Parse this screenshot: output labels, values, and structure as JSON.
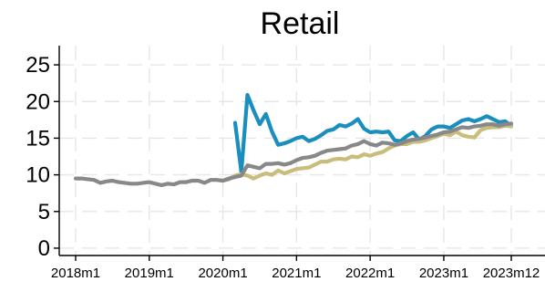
{
  "chart_data": {
    "type": "line",
    "title": "Retail",
    "xlabel": "",
    "ylabel": "",
    "x_ticks": [
      "2018m1",
      "2019m1",
      "2020m1",
      "2021m1",
      "2022m1",
      "2023m1",
      "2023m12"
    ],
    "xlim": [
      "2018m1",
      "2023m12"
    ],
    "y_ticks": [
      0,
      5,
      10,
      15,
      20,
      25
    ],
    "ylim": [
      -1,
      27
    ],
    "grid": true,
    "legend": "none",
    "series": [
      {
        "color": "#1a8fbf",
        "x": [
          "2020m3",
          "2020m4",
          "2020m5",
          "2020m6",
          "2020m7",
          "2020m8",
          "2020m9",
          "2020m10",
          "2020m11",
          "2020m12",
          "2021m1",
          "2021m2",
          "2021m3",
          "2021m4",
          "2021m5",
          "2021m6",
          "2021m7",
          "2021m8",
          "2021m9",
          "2021m10",
          "2021m11",
          "2021m12",
          "2022m1",
          "2022m2",
          "2022m3",
          "2022m4",
          "2022m5",
          "2022m6",
          "2022m7",
          "2022m8",
          "2022m9",
          "2022m10",
          "2022m11",
          "2022m12",
          "2023m1",
          "2023m2",
          "2023m3",
          "2023m4",
          "2023m5",
          "2023m6",
          "2023m7",
          "2023m8",
          "2023m9",
          "2023m10",
          "2023m11",
          "2023m12"
        ],
        "y": [
          17.1,
          10.4,
          20.9,
          18.8,
          16.9,
          18.3,
          15.9,
          14.1,
          14.3,
          14.6,
          15.0,
          15.2,
          14.6,
          14.9,
          15.4,
          16.0,
          16.2,
          16.8,
          16.6,
          17.0,
          17.6,
          16.3,
          15.8,
          15.9,
          15.8,
          15.9,
          14.7,
          14.6,
          15.3,
          15.8,
          14.8,
          15.3,
          16.2,
          16.6,
          16.6,
          16.4,
          16.9,
          17.4,
          17.6,
          17.3,
          17.6,
          18.0,
          17.6,
          17.2,
          17.3,
          16.7
        ]
      },
      {
        "color": "#c9bd7c",
        "x": [
          "2020m1",
          "2020m2",
          "2020m3",
          "2020m4",
          "2020m5",
          "2020m6",
          "2020m7",
          "2020m8",
          "2020m9",
          "2020m10",
          "2020m11",
          "2020m12",
          "2021m1",
          "2021m2",
          "2021m3",
          "2021m4",
          "2021m5",
          "2021m6",
          "2021m7",
          "2021m8",
          "2021m9",
          "2021m10",
          "2021m11",
          "2021m12",
          "2022m1",
          "2022m2",
          "2022m3",
          "2022m4",
          "2022m5",
          "2022m6",
          "2022m7",
          "2022m8",
          "2022m9",
          "2022m10",
          "2022m11",
          "2022m12",
          "2023m1",
          "2023m2",
          "2023m3",
          "2023m4",
          "2023m5",
          "2023m6",
          "2023m7",
          "2023m8",
          "2023m9",
          "2023m10",
          "2023m11",
          "2023m12"
        ],
        "y": [
          9.2,
          9.4,
          9.9,
          10.1,
          9.9,
          9.5,
          9.9,
          10.2,
          10.0,
          10.6,
          10.2,
          10.5,
          10.8,
          10.9,
          11.0,
          11.4,
          11.8,
          11.8,
          12.1,
          12.2,
          12.1,
          12.5,
          12.4,
          12.8,
          12.6,
          12.9,
          13.1,
          13.6,
          14.0,
          14.2,
          14.2,
          14.5,
          14.5,
          14.7,
          15.0,
          15.3,
          15.6,
          15.4,
          15.9,
          15.4,
          15.2,
          15.1,
          16.1,
          16.4,
          16.5,
          16.5,
          16.7,
          16.6
        ]
      },
      {
        "color": "#888888",
        "x": [
          "2018m1",
          "2018m2",
          "2018m3",
          "2018m4",
          "2018m5",
          "2018m6",
          "2018m7",
          "2018m8",
          "2018m9",
          "2018m10",
          "2018m11",
          "2018m12",
          "2019m1",
          "2019m2",
          "2019m3",
          "2019m4",
          "2019m5",
          "2019m6",
          "2019m7",
          "2019m8",
          "2019m9",
          "2019m10",
          "2019m11",
          "2019m12",
          "2020m1",
          "2020m2",
          "2020m3",
          "2020m4",
          "2020m5",
          "2020m6",
          "2020m7",
          "2020m8",
          "2020m9",
          "2020m10",
          "2020m11",
          "2020m12",
          "2021m1",
          "2021m2",
          "2021m3",
          "2021m4",
          "2021m5",
          "2021m6",
          "2021m7",
          "2021m8",
          "2021m9",
          "2021m10",
          "2021m11",
          "2021m12",
          "2022m1",
          "2022m2",
          "2022m3",
          "2022m4",
          "2022m5",
          "2022m6",
          "2022m7",
          "2022m8",
          "2022m9",
          "2022m10",
          "2022m11",
          "2022m12",
          "2023m1",
          "2023m2",
          "2023m3",
          "2023m4",
          "2023m5",
          "2023m6",
          "2023m7",
          "2023m8",
          "2023m9",
          "2023m10",
          "2023m11",
          "2023m12"
        ],
        "y": [
          9.5,
          9.5,
          9.4,
          9.3,
          8.9,
          9.1,
          9.2,
          9.0,
          8.9,
          8.8,
          8.8,
          8.9,
          9.0,
          8.8,
          8.6,
          8.8,
          8.7,
          9.0,
          9.0,
          9.2,
          9.2,
          8.9,
          9.3,
          9.3,
          9.2,
          9.5,
          9.7,
          9.9,
          11.3,
          11.1,
          10.9,
          11.5,
          11.5,
          11.6,
          11.4,
          11.6,
          12.0,
          12.3,
          12.4,
          12.6,
          13.0,
          13.3,
          13.4,
          13.5,
          13.6,
          14.0,
          14.2,
          14.6,
          14.2,
          14.0,
          14.4,
          14.3,
          14.1,
          14.3,
          14.6,
          14.8,
          14.9,
          15.1,
          15.3,
          15.5,
          15.8,
          15.9,
          16.2,
          16.5,
          16.4,
          16.6,
          16.7,
          16.9,
          16.9,
          16.7,
          16.9,
          17.0
        ]
      }
    ]
  }
}
